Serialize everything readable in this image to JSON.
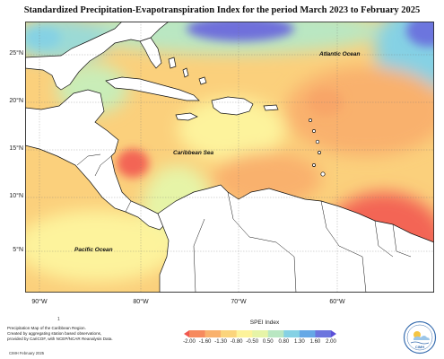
{
  "title": "Standardized Precipitation-Evapotranspiration Index for the period March 2023 to February 2025",
  "latitude_ticks": [
    "25°N",
    "20°N",
    "15°N",
    "10°N",
    "5°N"
  ],
  "longitude_ticks": [
    "90°W",
    "80°W",
    "70°W",
    "60°W"
  ],
  "labels": {
    "atlantic": "Atlantic Ocean",
    "caribbean": "Caribbean Sea",
    "pacific": "Pacific Ocean"
  },
  "note_mark": "1",
  "credit": [
    "Precipitation Map of the Caribbean Region.",
    "Created by aggregating station based observations,",
    "provided by CariCOF, with NCEP/NCAR Reanalysis Data."
  ],
  "footer": "CIMH February 2025",
  "legend": {
    "title": "SPEI Index",
    "ticks": [
      "-2.00",
      "-1.60",
      "-1.30",
      "-0.80",
      "-0.50",
      "0.50",
      "0.80",
      "1.30",
      "1.60",
      "2.00"
    ],
    "colors": [
      "#f0584f",
      "#f68a5e",
      "#f9b16d",
      "#fbd47c",
      "#fdf39a",
      "#e6f4a7",
      "#b9e7c2",
      "#85d1e4",
      "#66a8e6",
      "#6c75de",
      "#5a4fd8"
    ]
  },
  "logo_text": "CIMH",
  "map_colors": {
    "land": "#ffffff",
    "dry_severe": "#f36554",
    "dry": "#f8a567",
    "dry_mild": "#fbd07c",
    "near_normal": "#fdf39c",
    "wet_mild": "#c9edb8",
    "wet": "#86d3e2",
    "wet_severe": "#6f6fdb"
  }
}
